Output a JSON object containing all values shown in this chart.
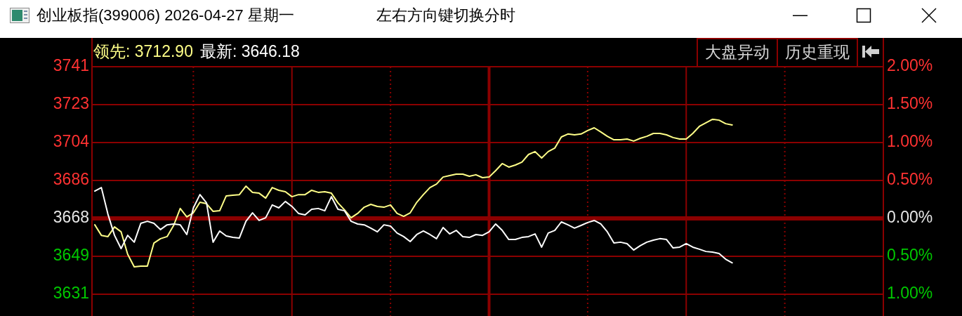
{
  "chart_data": {
    "type": "line",
    "title": "创业板指(399006) 2026-04-27 星期一",
    "subtitle": "左右方向键切换分时",
    "annotations": [
      "大盘异动",
      "历史重现"
    ],
    "categories": [
      null,
      null,
      null,
      null,
      null,
      null,
      null,
      null,
      null,
      null,
      null,
      null,
      null,
      null,
      null,
      null,
      null,
      null,
      null,
      null,
      null,
      null,
      null,
      null,
      null,
      null,
      null,
      null,
      null,
      null,
      null,
      null,
      null,
      null,
      null,
      null,
      null,
      null,
      null,
      null,
      null,
      null,
      null,
      null,
      null,
      null,
      null,
      null,
      null,
      null,
      null,
      null,
      null,
      null,
      null,
      null,
      null,
      null,
      null,
      null,
      null,
      null,
      null,
      null,
      null,
      null,
      null,
      null,
      null,
      null,
      null,
      null,
      null,
      null,
      null,
      null,
      null,
      null,
      null,
      null,
      null,
      null,
      null,
      null,
      null,
      null,
      null,
      null,
      null,
      null,
      null,
      null,
      null,
      null,
      null,
      null,
      null,
      null,
      null,
      null,
      null,
      null,
      null,
      null,
      null,
      null,
      null,
      null,
      null,
      null,
      null,
      null,
      null,
      null,
      null,
      null,
      null,
      null,
      null,
      null,
      null
    ],
    "series": [
      {
        "name": "领先: 3712.90",
        "color": "#ffff88",
        "values": [
          3664.6,
          3659.5,
          3658.9,
          3663.6,
          3661.2,
          3650.4,
          3644.3,
          3644.6,
          3644.6,
          3655.8,
          3657.9,
          3658.9,
          3664.3,
          3672.5,
          3668.4,
          3670.4,
          3675.5,
          3674.8,
          3671.1,
          3671.4,
          3678.6,
          3678.9,
          3679.2,
          3683.3,
          3680.3,
          3679.9,
          3677.5,
          3682.6,
          3681.3,
          3680.6,
          3678.2,
          3679.2,
          3679.2,
          3681.3,
          3680.3,
          3680.6,
          3679.9,
          3675.2,
          3671.8,
          3668.0,
          3670.1,
          3673.1,
          3674.5,
          3673.5,
          3673.1,
          3674.2,
          3670.1,
          3668.7,
          3670.4,
          3675.5,
          3679.2,
          3682.6,
          3684.3,
          3687.7,
          3688.4,
          3689.1,
          3689.1,
          3688.1,
          3688.8,
          3687.4,
          3687.7,
          3690.8,
          3694.2,
          3692.5,
          3693.5,
          3694.9,
          3698.6,
          3700.0,
          3696.9,
          3700.0,
          3701.7,
          3707.1,
          3708.5,
          3708.1,
          3708.5,
          3710.2,
          3711.5,
          3709.5,
          3707.4,
          3705.7,
          3705.7,
          3706.1,
          3705.1,
          3706.4,
          3707.4,
          3708.8,
          3708.8,
          3708.1,
          3706.8,
          3706.1,
          3706.1,
          3708.8,
          3712.2,
          3713.9,
          3715.6,
          3715.2,
          3713.5,
          3712.9,
          null,
          null,
          null,
          null,
          null,
          null,
          null,
          null,
          null,
          null,
          null,
          null,
          null,
          null,
          null,
          null,
          null,
          null,
          null,
          null,
          null,
          null,
          null
        ]
      },
      {
        "name": "最新: 3646.18",
        "color": "#ffffff",
        "values": [
          3680.9,
          3682.6,
          3669.7,
          3659.5,
          3653.1,
          3659.5,
          3656.2,
          3665.3,
          3666.3,
          3665.3,
          3662.3,
          3664.6,
          3665.0,
          3664.6,
          3659.9,
          3672.8,
          3679.2,
          3675.2,
          3656.2,
          3661.6,
          3659.2,
          3658.5,
          3658.2,
          3666.3,
          3670.4,
          3666.7,
          3668.0,
          3674.2,
          3672.8,
          3675.9,
          3673.5,
          3670.1,
          3669.4,
          3672.1,
          3672.5,
          3671.4,
          3678.2,
          3672.1,
          3671.4,
          3666.3,
          3665.0,
          3664.6,
          3663.0,
          3661.2,
          3664.6,
          3664.0,
          3660.6,
          3658.9,
          3656.5,
          3659.9,
          3661.6,
          3659.9,
          3657.9,
          3663.3,
          3660.2,
          3661.9,
          3658.9,
          3658.5,
          3659.9,
          3659.5,
          3661.2,
          3665.0,
          3661.9,
          3657.5,
          3657.5,
          3658.5,
          3658.9,
          3660.2,
          3653.8,
          3660.6,
          3661.9,
          3666.0,
          3664.6,
          3663.0,
          3664.3,
          3665.7,
          3666.7,
          3665.0,
          3661.2,
          3655.8,
          3656.2,
          3655.5,
          3652.4,
          3654.5,
          3656.2,
          3657.2,
          3657.9,
          3657.5,
          3653.4,
          3653.8,
          3655.5,
          3653.8,
          3652.8,
          3651.7,
          3651.4,
          3650.7,
          3648.0,
          3646.2,
          null,
          null,
          null,
          null,
          null,
          null,
          null,
          null,
          null,
          null,
          null,
          null,
          null,
          null,
          null,
          null,
          null,
          null,
          null,
          null,
          null,
          null,
          null
        ]
      }
    ],
    "ylim": [
      3620.5,
      3741.05
    ],
    "yticks": [
      {
        "value": 3741.05,
        "label": "3741"
      },
      {
        "value": 3722.72,
        "label": "3723"
      },
      {
        "value": 3704.38,
        "label": "3704"
      },
      {
        "value": 3686.04,
        "label": "3686"
      },
      {
        "value": 3667.7,
        "label": "3668"
      },
      {
        "value": 3649.36,
        "label": "3649"
      },
      {
        "value": 3631.02,
        "label": "3631"
      }
    ],
    "y2lim": [
      -1.287,
      2
    ],
    "y2ticks": [
      {
        "value": 2,
        "label": "2.00%"
      },
      {
        "value": 1.5,
        "label": "1.50%"
      },
      {
        "value": 1,
        "label": "1.00%"
      },
      {
        "value": 0.5,
        "label": "0.50%"
      },
      {
        "value": 0,
        "label": "0.00%"
      },
      {
        "value": -0.5,
        "label": "0.50%"
      },
      {
        "value": -1,
        "label": "1.00%"
      }
    ],
    "ref_lines": [
      {
        "axis": "y",
        "value": 3667.7,
        "color": "#8b0000"
      }
    ],
    "grid": true,
    "legend": "top left"
  }
}
